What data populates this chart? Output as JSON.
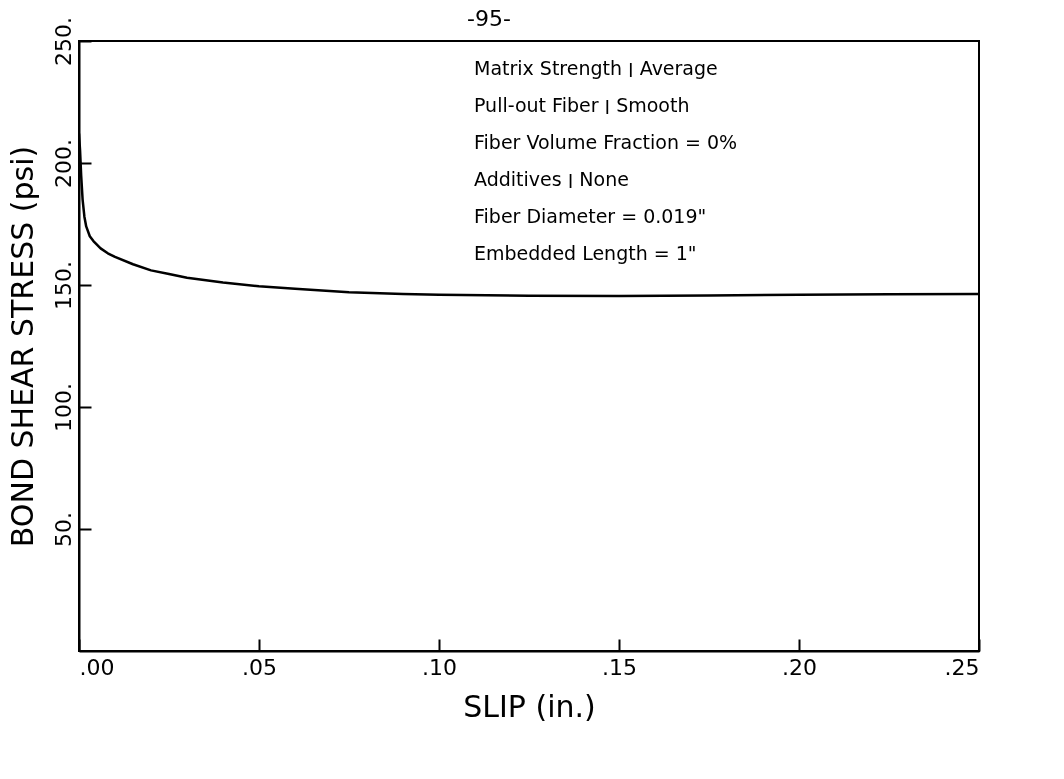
{
  "chart_data": {
    "type": "line",
    "xlabel": "SLIP   (in.)",
    "ylabel": "BOND SHEAR STRESS (psi)",
    "annotations": [
      "-95-",
      "Matrix Strength ׀ Average",
      "Pull-out Fiber ׀ Smooth",
      "Fiber Volume Fraction = 0%",
      "Additives ׀ None",
      "Fiber Diameter = 0.019\"",
      "Embedded Length = 1\""
    ],
    "series": [
      {
        "color": "#000000",
        "x": [
          0,
          0.0003,
          0.0006,
          0.001,
          0.0015,
          0.002,
          0.003,
          0.004,
          0.006,
          0.008,
          0.01,
          0.015,
          0.02,
          0.025,
          0.03,
          0.04,
          0.05,
          0.06,
          0.075,
          0.09,
          0.1,
          0.125,
          0.15,
          0.175,
          0.2,
          0.225,
          0.25
        ],
        "values": [
          212,
          205,
          195,
          185,
          178,
          174,
          170,
          168,
          165,
          163,
          161.5,
          158.5,
          156,
          154.5,
          153,
          151,
          149.5,
          148.5,
          147,
          146.3,
          146,
          145.6,
          145.5,
          145.7,
          146,
          146.2,
          146.3
        ]
      }
    ],
    "xlim": [
      0,
      0.25
    ],
    "ylim": [
      0,
      250
    ],
    "xticks": [
      {
        "value": 0,
        "label": ".00"
      },
      {
        "value": 0.05,
        "label": ".05"
      },
      {
        "value": 0.1,
        "label": ".10"
      },
      {
        "value": 0.15,
        "label": ".15"
      },
      {
        "value": 0.2,
        "label": ".20"
      },
      {
        "value": 0.25,
        "label": ".25"
      }
    ],
    "yticks": [
      {
        "value": 50,
        "label": "50."
      },
      {
        "value": 100,
        "label": "100."
      },
      {
        "value": 150,
        "label": "150."
      },
      {
        "value": 200,
        "label": "200."
      },
      {
        "value": 250,
        "label": "250."
      }
    ],
    "grid": false,
    "marker": "none",
    "line_style": "solid"
  }
}
